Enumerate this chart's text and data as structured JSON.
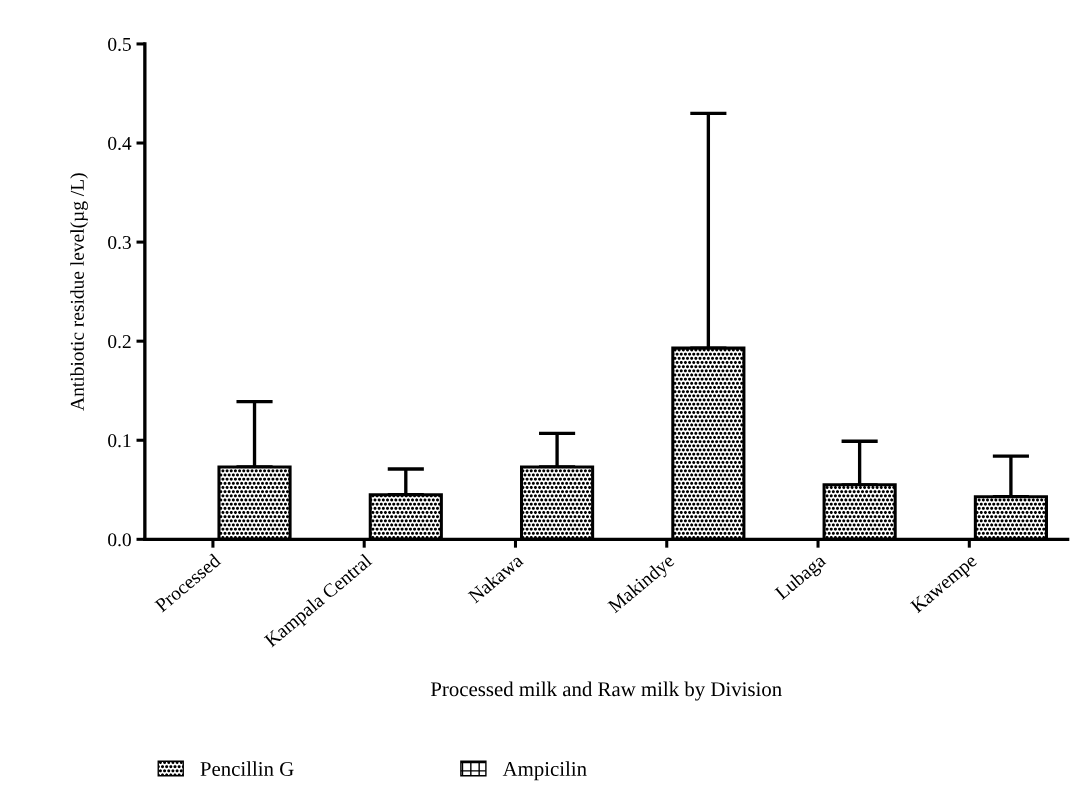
{
  "chart_data": {
    "type": "bar",
    "xlabel": "Processed milk and Raw milk by Division",
    "ylabel": "Antibiotic residue level(µg /L)",
    "categories": [
      "Processed",
      "Kampala Central",
      "Nakawa",
      "Makindye",
      "Lubaga",
      "Kawempe"
    ],
    "series": [
      {
        "name": "Pencillin G",
        "color": "#000000",
        "values": [
          0.073,
          0.045,
          0.073,
          0.193,
          0.055,
          0.043
        ],
        "errors": [
          [
            0.073,
            0.139
          ],
          [
            0.045,
            0.071
          ],
          [
            0.073,
            0.107
          ],
          [
            0.193,
            0.43
          ],
          [
            0.055,
            0.099
          ],
          [
            0.043,
            0.084
          ]
        ]
      },
      {
        "name": "Ampicilin",
        "color": "#000000",
        "values": [
          null,
          null,
          null,
          null,
          null,
          null
        ]
      }
    ],
    "ylim": [
      0,
      0.5
    ],
    "yticks": [
      {
        "value": 0,
        "label": "0.0"
      },
      0.1,
      0.2,
      0.3,
      0.4,
      0.5
    ],
    "grid": false,
    "legend": "bottom"
  }
}
